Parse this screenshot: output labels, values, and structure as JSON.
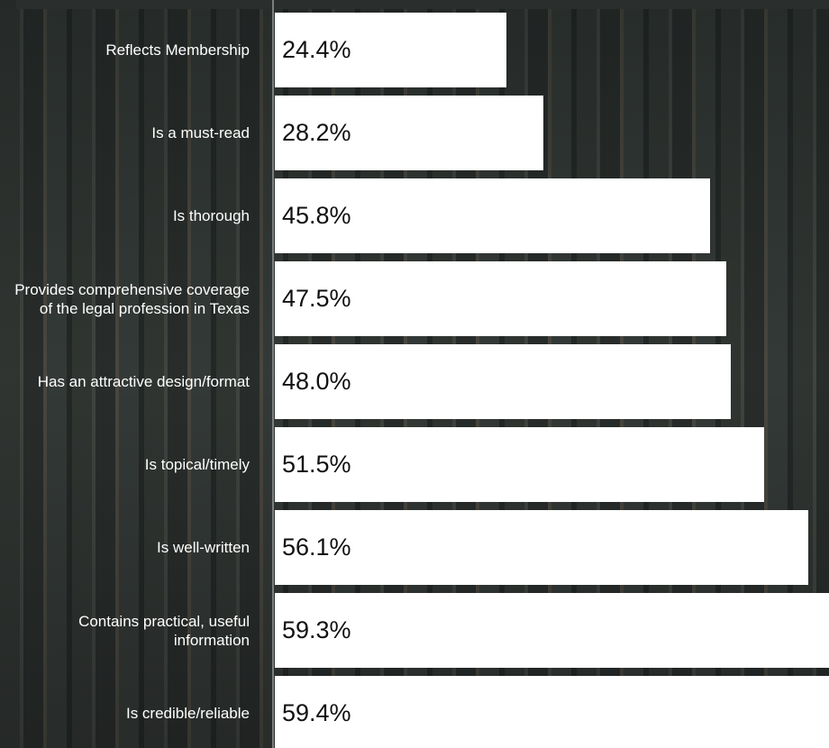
{
  "chart_data": {
    "type": "bar",
    "orientation": "horizontal",
    "categories": [
      "Reflects Membership",
      "Is a must-read",
      "Is thorough",
      "Provides comprehensive coverage of the legal profession in Texas",
      "Has an attractive design/format",
      "Is topical/timely",
      "Is well-written",
      "Contains practical, useful information",
      "Is credible/reliable"
    ],
    "values": [
      24.4,
      28.2,
      45.8,
      47.5,
      48.0,
      51.5,
      56.1,
      59.3,
      59.4
    ],
    "value_labels": [
      "24.4%",
      "28.2%",
      "45.8%",
      "47.5%",
      "48.0%",
      "51.5%",
      "56.1%",
      "59.3%",
      "59.4%"
    ],
    "color": "#ffffff"
  }
}
